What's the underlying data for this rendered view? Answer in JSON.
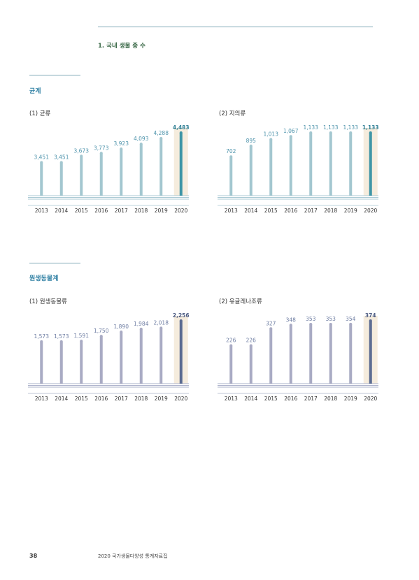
{
  "header": {
    "title": "1. 국내 생물 종 수"
  },
  "sections": [
    {
      "title": "균계"
    },
    {
      "title": "원생동물계"
    }
  ],
  "colors": {
    "teal_bar": "#a3c7d0",
    "teal_highlight_bar": "#3e95a6",
    "teal_label": "#4d93ab",
    "purple_bar": "#a9abc4",
    "purple_highlight_bar": "#5b6b91",
    "purple_label": "#6f7ea3",
    "highlight_band": "#f5ecdd"
  },
  "chart_data": [
    {
      "type": "bar",
      "title": "(1) 균류",
      "theme": "teal",
      "categories": [
        "2013",
        "2014",
        "2015",
        "2016",
        "2017",
        "2018",
        "2019",
        "2020"
      ],
      "values": [
        3451,
        3451,
        3673,
        3773,
        3923,
        4093,
        4288,
        4483
      ],
      "value_labels": [
        "3,451",
        "3,451",
        "3,673",
        "3,773",
        "3,923",
        "4,093",
        "4,288",
        "4,483"
      ],
      "highlight_index": 7,
      "ylim": [
        2300,
        4483
      ]
    },
    {
      "type": "bar",
      "title": "(2) 지의류",
      "theme": "teal",
      "categories": [
        "2013",
        "2014",
        "2015",
        "2016",
        "2017",
        "2018",
        "2019",
        "2020"
      ],
      "values": [
        702,
        895,
        1013,
        1067,
        1133,
        1133,
        1133,
        1133
      ],
      "value_labels": [
        "702",
        "895",
        "1,013",
        "1,067",
        "1,133",
        "1,133",
        "1,133",
        "1,133"
      ],
      "highlight_index": 7,
      "ylim": [
        0,
        1133
      ]
    },
    {
      "type": "bar",
      "title": "(1) 원생동물류",
      "theme": "purple",
      "categories": [
        "2013",
        "2014",
        "2015",
        "2016",
        "2017",
        "2018",
        "2019",
        "2020"
      ],
      "values": [
        1573,
        1573,
        1591,
        1750,
        1890,
        1984,
        2018,
        2256
      ],
      "value_labels": [
        "1,573",
        "1,573",
        "1,591",
        "1,750",
        "1,890",
        "1,984",
        "2,018",
        "2,256"
      ],
      "highlight_index": 7,
      "ylim": [
        200,
        2256
      ]
    },
    {
      "type": "bar",
      "title": "(2) 유글레나조류",
      "theme": "purple",
      "categories": [
        "2013",
        "2014",
        "2015",
        "2016",
        "2017",
        "2018",
        "2019",
        "2020"
      ],
      "values": [
        226,
        226,
        327,
        348,
        353,
        353,
        354,
        374
      ],
      "value_labels": [
        "226",
        "226",
        "327",
        "348",
        "353",
        "353",
        "354",
        "374"
      ],
      "highlight_index": 7,
      "ylim": [
        0,
        374
      ]
    }
  ],
  "footer": {
    "page_number": "38",
    "publication": "2020 국가생물다양성 통계자료집"
  }
}
